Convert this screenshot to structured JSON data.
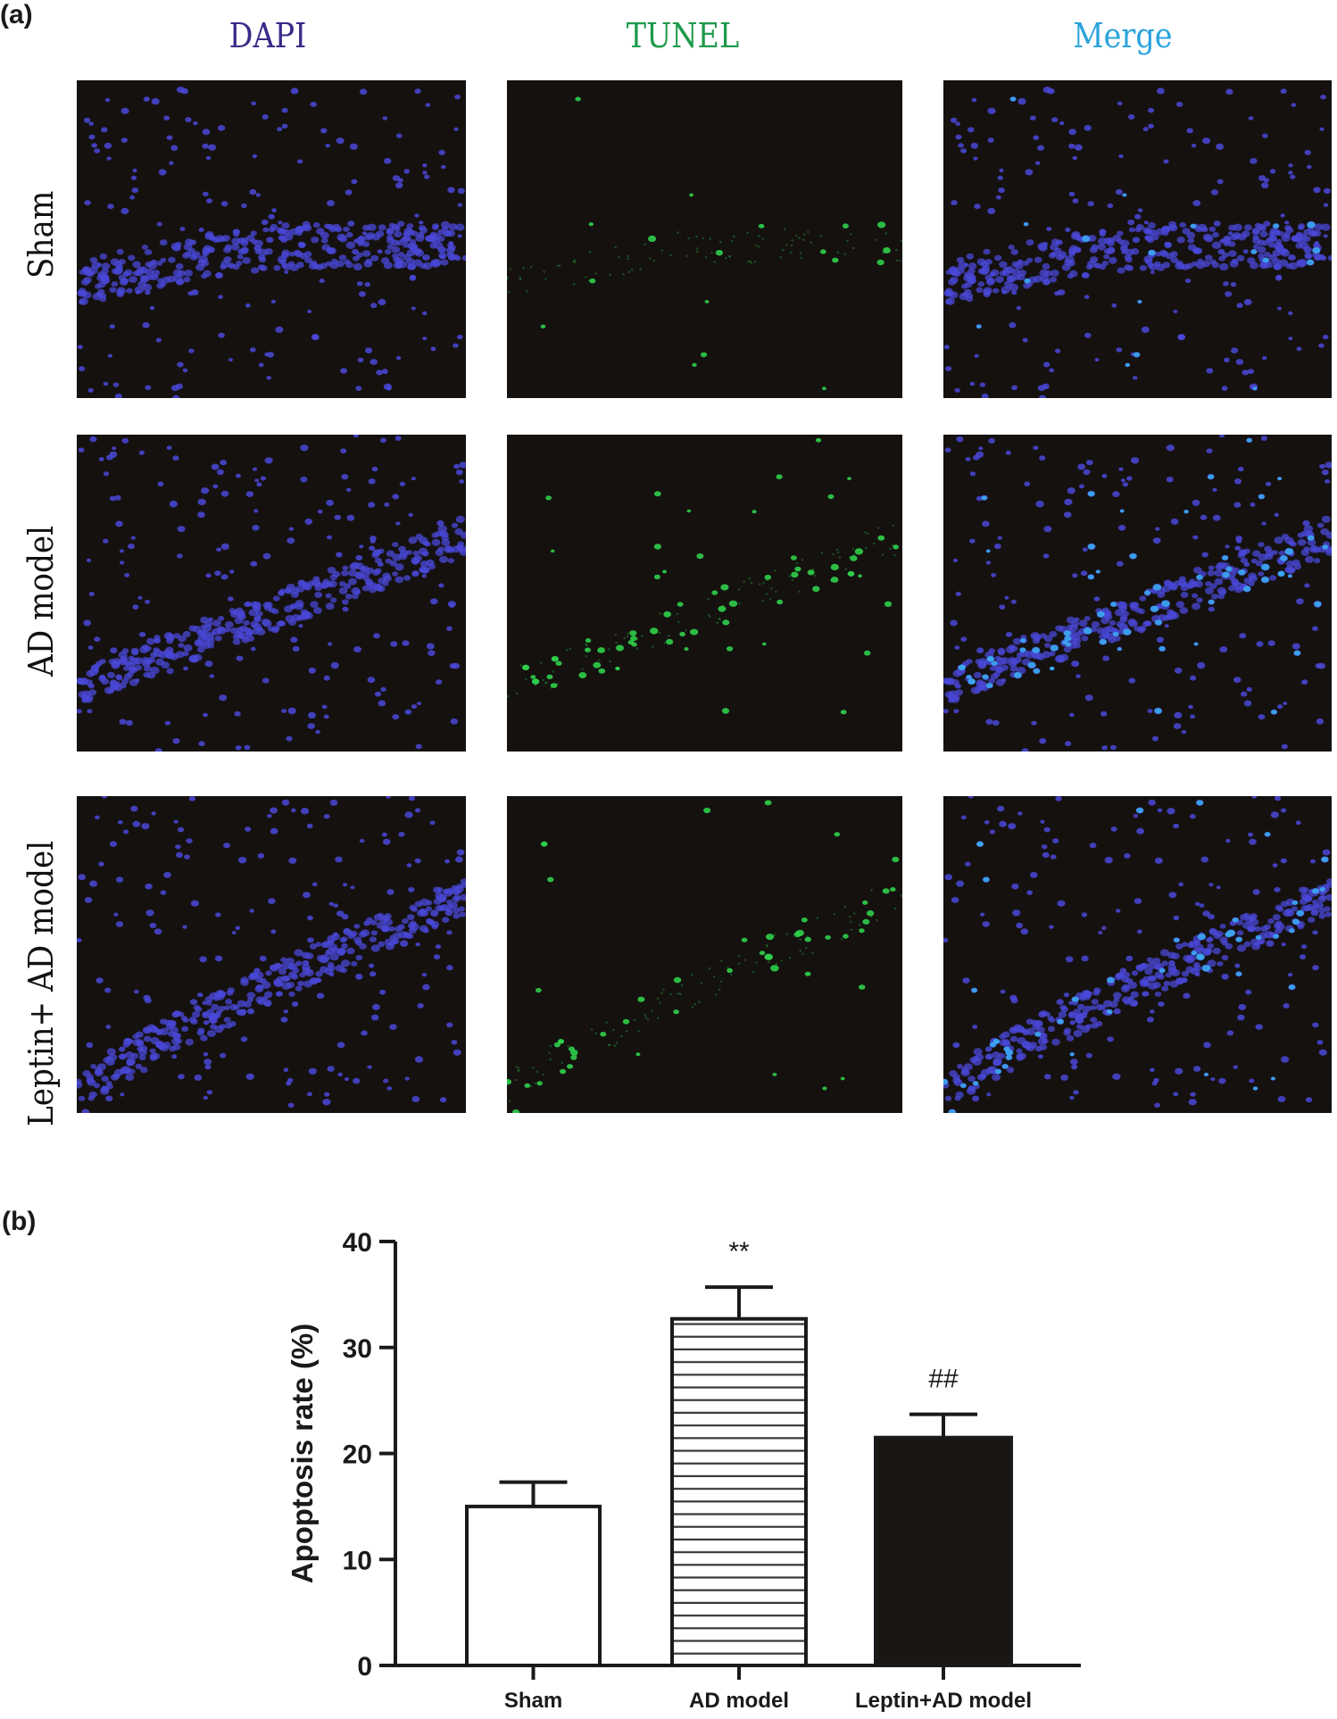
{
  "figure": {
    "panel_a_label": "(a)",
    "panel_b_label": "(b)"
  },
  "microscopy": {
    "columns": [
      {
        "label": "DAPI",
        "color": "#3a2a8a"
      },
      {
        "label": "TUNEL",
        "color": "#1e9a4a"
      },
      {
        "label": "Merge",
        "color": "#2ba3dc"
      }
    ],
    "rows": [
      {
        "label": "Sham",
        "tunel_density": "low"
      },
      {
        "label": "AD model",
        "tunel_density": "high"
      },
      {
        "label": "Leptin+ AD model",
        "tunel_density": "medium"
      }
    ],
    "background": "#15110f",
    "dapi_dot_color": "#4a48d8",
    "tunel_dot_color": "#2fcf4a",
    "merge_dot_color": "#3aa8f0"
  },
  "chart_data": {
    "type": "bar",
    "title": "",
    "xlabel": "",
    "ylabel": "Apoptosis rate (%)",
    "ylim": [
      0,
      40
    ],
    "yticks": [
      0,
      10,
      20,
      30,
      40
    ],
    "grid": false,
    "legend": null,
    "categories": [
      "Sham",
      "AD model",
      "Leptin+AD model"
    ],
    "values": [
      15.0,
      32.7,
      21.5
    ],
    "errors": [
      2.3,
      3.0,
      2.2
    ],
    "bar_styles": [
      "white",
      "horizontal-hatch",
      "black"
    ],
    "annotations": [
      {
        "category": "AD model",
        "text": "**"
      },
      {
        "category": "Leptin+AD model",
        "text": "##"
      }
    ]
  }
}
